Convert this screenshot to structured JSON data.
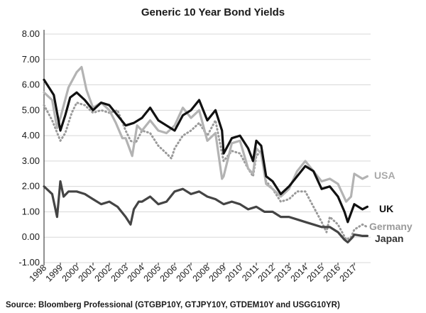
{
  "chart_data": {
    "type": "line",
    "title": "Generic 10 Year Bond Yields",
    "source": "Source: Bloomberg Professional (GTGBP10Y, GTJPY10Y, GTDEM10Y and USGG10YR)",
    "ylim": [
      -1,
      8
    ],
    "yticks": [
      "8.00",
      "7.00",
      "6.00",
      "5.00",
      "4.00",
      "3.00",
      "2.00",
      "1.00",
      "0.00",
      "-1.00"
    ],
    "xlim": [
      1998,
      2018
    ],
    "xticks": [
      "1998",
      "1999",
      "2000",
      "2001",
      "2002",
      "2003",
      "2004",
      "2005",
      "2006",
      "2007",
      "2008",
      "2009",
      "2010",
      "2011",
      "2012",
      "2013",
      "2014",
      "2015",
      "2016",
      "2017"
    ],
    "grid": true,
    "series": [
      {
        "name": "Germany",
        "color": "#9a9a9a",
        "style": "dotted",
        "x": [
          1998.0,
          1998.5,
          1999.0,
          1999.3,
          1999.7,
          2000.0,
          2000.5,
          2001.0,
          2001.5,
          2002.0,
          2002.5,
          2003.0,
          2003.3,
          2003.6,
          2004.0,
          2004.5,
          2005.0,
          2005.5,
          2005.8,
          2006.0,
          2006.5,
          2007.0,
          2007.5,
          2008.0,
          2008.5,
          2008.9,
          2009.0,
          2009.5,
          2010.0,
          2010.5,
          2010.8,
          2011.0,
          2011.3,
          2011.6,
          2012.0,
          2012.5,
          2013.0,
          2013.5,
          2014.0,
          2014.5,
          2015.0,
          2015.3,
          2015.5,
          2016.0,
          2016.5,
          2016.8,
          2017.0,
          2017.5,
          2017.8
        ],
        "values": [
          5.2,
          4.6,
          3.8,
          4.1,
          4.9,
          5.3,
          5.2,
          4.9,
          5.0,
          4.9,
          5.0,
          4.2,
          3.8,
          3.7,
          4.2,
          4.1,
          3.6,
          3.3,
          3.1,
          3.5,
          4.0,
          4.2,
          4.5,
          4.0,
          4.6,
          3.3,
          3.0,
          3.4,
          3.3,
          2.7,
          2.4,
          3.2,
          3.4,
          2.2,
          1.9,
          1.4,
          1.5,
          1.8,
          1.8,
          1.2,
          0.6,
          0.2,
          0.8,
          0.5,
          -0.1,
          0.0,
          0.3,
          0.5,
          0.4
        ]
      },
      {
        "name": "USA",
        "color": "#b3b3b3",
        "style": "solid",
        "x": [
          1998.0,
          1998.5,
          1998.8,
          1999.0,
          1999.5,
          2000.0,
          2000.3,
          2000.6,
          2001.0,
          2001.5,
          2002.0,
          2002.4,
          2002.8,
          2003.0,
          2003.4,
          2003.7,
          2004.0,
          2004.5,
          2005.0,
          2005.5,
          2006.0,
          2006.5,
          2007.0,
          2007.5,
          2008.0,
          2008.5,
          2008.9,
          2009.0,
          2009.5,
          2010.0,
          2010.5,
          2010.8,
          2011.0,
          2011.3,
          2011.6,
          2012.0,
          2012.5,
          2013.0,
          2013.5,
          2014.0,
          2014.5,
          2015.0,
          2015.5,
          2016.0,
          2016.5,
          2016.8,
          2017.0,
          2017.5,
          2017.8
        ],
        "values": [
          5.7,
          5.4,
          4.3,
          4.7,
          5.9,
          6.5,
          6.7,
          5.8,
          5.1,
          5.3,
          5.0,
          4.5,
          3.9,
          3.9,
          3.2,
          4.4,
          4.2,
          4.6,
          4.2,
          4.1,
          4.4,
          5.1,
          4.7,
          5.0,
          3.8,
          4.1,
          2.3,
          2.4,
          3.7,
          3.8,
          2.7,
          2.5,
          3.5,
          3.3,
          2.1,
          1.9,
          1.6,
          1.9,
          2.6,
          3.0,
          2.6,
          2.2,
          2.3,
          2.1,
          1.4,
          1.6,
          2.5,
          2.3,
          2.4
        ]
      },
      {
        "name": "UK",
        "color": "#111111",
        "style": "solid",
        "x": [
          1998.0,
          1998.3,
          1998.6,
          1998.8,
          1999.0,
          1999.3,
          1999.6,
          2000.0,
          2000.5,
          2001.0,
          2001.5,
          2002.0,
          2002.5,
          2003.0,
          2003.5,
          2004.0,
          2004.5,
          2005.0,
          2005.5,
          2006.0,
          2006.5,
          2007.0,
          2007.5,
          2008.0,
          2008.5,
          2008.9,
          2009.0,
          2009.5,
          2010.0,
          2010.5,
          2010.8,
          2011.0,
          2011.3,
          2011.6,
          2012.0,
          2012.5,
          2013.0,
          2013.5,
          2014.0,
          2014.5,
          2015.0,
          2015.5,
          2016.0,
          2016.4,
          2016.6,
          2017.0,
          2017.5,
          2017.8
        ],
        "values": [
          6.2,
          5.9,
          5.6,
          4.9,
          4.2,
          4.8,
          5.5,
          5.7,
          5.4,
          5.0,
          5.3,
          5.2,
          4.8,
          4.4,
          4.5,
          4.7,
          5.1,
          4.6,
          4.4,
          4.2,
          4.8,
          5.0,
          5.4,
          4.6,
          5.0,
          4.2,
          3.3,
          3.9,
          4.0,
          3.5,
          3.0,
          3.8,
          3.6,
          2.4,
          2.2,
          1.7,
          2.0,
          2.4,
          2.8,
          2.6,
          1.9,
          2.0,
          1.6,
          1.0,
          0.6,
          1.3,
          1.1,
          1.2
        ]
      },
      {
        "name": "Japan",
        "color": "#444444",
        "style": "solid",
        "x": [
          1998.0,
          1998.5,
          1998.8,
          1998.9,
          1999.0,
          1999.2,
          1999.5,
          2000.0,
          2000.5,
          2001.0,
          2001.5,
          2002.0,
          2002.5,
          2003.0,
          2003.3,
          2003.5,
          2003.8,
          2004.0,
          2004.5,
          2005.0,
          2005.5,
          2006.0,
          2006.5,
          2007.0,
          2007.5,
          2008.0,
          2008.5,
          2009.0,
          2009.5,
          2010.0,
          2010.5,
          2011.0,
          2011.5,
          2012.0,
          2012.5,
          2013.0,
          2013.5,
          2014.0,
          2014.5,
          2015.0,
          2015.5,
          2016.0,
          2016.4,
          2016.6,
          2016.9,
          2017.0,
          2017.5,
          2017.8
        ],
        "values": [
          2.0,
          1.7,
          0.8,
          1.5,
          2.2,
          1.6,
          1.8,
          1.8,
          1.7,
          1.5,
          1.3,
          1.4,
          1.2,
          0.8,
          0.5,
          1.1,
          1.4,
          1.4,
          1.6,
          1.3,
          1.4,
          1.8,
          1.9,
          1.7,
          1.8,
          1.6,
          1.5,
          1.3,
          1.4,
          1.3,
          1.1,
          1.2,
          1.0,
          1.0,
          0.8,
          0.8,
          0.7,
          0.6,
          0.5,
          0.4,
          0.4,
          0.2,
          -0.1,
          -0.2,
          0.0,
          0.1,
          0.05,
          0.05
        ]
      }
    ],
    "legend": [
      {
        "label": "USA",
        "color": "#a9a9a9"
      },
      {
        "label": "UK",
        "color": "#111111"
      },
      {
        "label": "Germany",
        "color": "#9a9a9a"
      },
      {
        "label": "Japan",
        "color": "#333333"
      }
    ]
  }
}
